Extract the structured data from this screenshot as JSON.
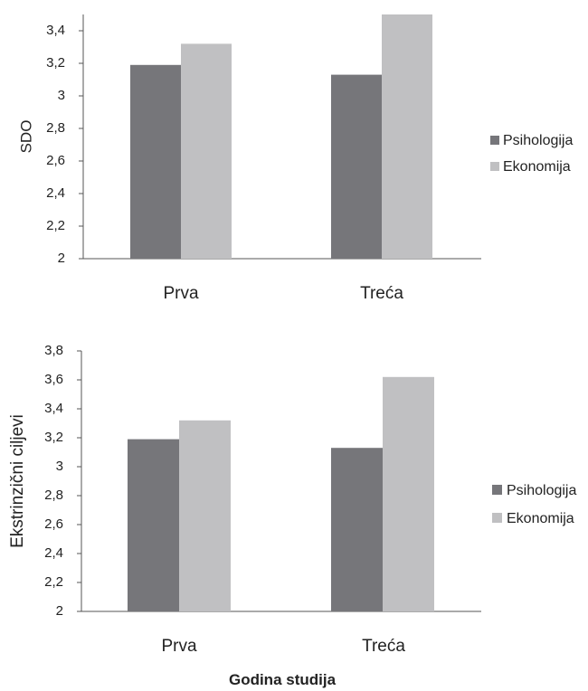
{
  "colors": {
    "psihologija": "#76767a",
    "ekonomija": "#c0c0c2"
  },
  "chart_data": [
    {
      "type": "bar",
      "categories": [
        "Prva",
        "Treća"
      ],
      "series": [
        {
          "name": "Psihologija",
          "values": [
            3.19,
            3.13
          ]
        },
        {
          "name": "Ekonomija",
          "values": [
            3.32,
            3.5
          ]
        }
      ],
      "ylabel": "SDO",
      "xlabel": "",
      "ylim": [
        2,
        3.5
      ],
      "yticks": [
        "2",
        "2,2",
        "2,4",
        "2,6",
        "2,8",
        "3",
        "3,2",
        "3,4"
      ],
      "legend": "right",
      "grid": false
    },
    {
      "type": "bar",
      "categories": [
        "Prva",
        "Treća"
      ],
      "series": [
        {
          "name": "Psihologija",
          "values": [
            3.19,
            3.13
          ]
        },
        {
          "name": "Ekonomija",
          "values": [
            3.32,
            3.62
          ]
        }
      ],
      "ylabel": "Ekstrinzični ciljevi",
      "xlabel": "Godina studija",
      "ylim": [
        2,
        3.8
      ],
      "yticks": [
        "2",
        "2,2",
        "2,4",
        "2,6",
        "2,8",
        "3",
        "3,2",
        "3,4",
        "3,6",
        "3,8"
      ],
      "legend": "right",
      "grid": false
    }
  ]
}
